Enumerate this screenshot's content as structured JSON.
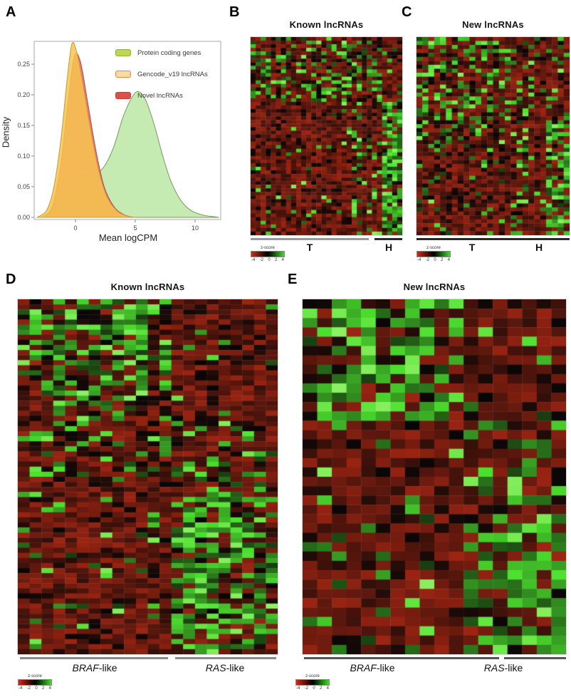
{
  "figure": {
    "background": "#ffffff"
  },
  "colorkey": {
    "label": "z-score",
    "ticks": [
      "-4",
      "-2",
      "0",
      "2",
      "4"
    ]
  },
  "panels": {
    "a": {
      "label": "A",
      "ylabel": "Density",
      "xlabel": "Mean logCPM",
      "legend": [
        {
          "label": "Protein coding genes",
          "swatch": "#bcd84e",
          "border": "#8fae33"
        },
        {
          "label": "Gencode_v19 lncRNAs",
          "swatch": "#f9dba6",
          "border": "#e8873f"
        },
        {
          "label": "Novel lncRNAs",
          "swatch": "#de5147",
          "border": "#c13c35"
        }
      ]
    },
    "b": {
      "label": "B",
      "title": "Known lncRNAs",
      "groups": [
        "T",
        "H"
      ]
    },
    "c": {
      "label": "C",
      "title": "New lncRNAs",
      "groups": [
        "T",
        "H"
      ]
    },
    "d": {
      "label": "D",
      "title": "Known lncRNAs",
      "groups": [
        {
          "italic": "BRAF",
          "rest": "-like"
        },
        {
          "italic": "RAS",
          "rest": "-like"
        }
      ]
    },
    "e": {
      "label": "E",
      "title": "New lncRNAs",
      "groups": [
        {
          "italic": "BRAF",
          "rest": "-like"
        },
        {
          "italic": "RAS",
          "rest": "-like"
        }
      ]
    }
  },
  "chart_data": [
    {
      "id": "density",
      "type": "area",
      "title": "",
      "xlabel": "Mean logCPM",
      "ylabel": "Density",
      "xlim": [
        -3.4,
        12.1
      ],
      "ylim": [
        0,
        0.285
      ],
      "xticks": [
        0,
        5,
        10
      ],
      "yticks": [
        0,
        0.05,
        0.1,
        0.15,
        0.2,
        0.25
      ],
      "grid": false,
      "legend_position": "top-right",
      "series": [
        {
          "name": "Protein coding genes",
          "color": "#b7e6a0",
          "stroke": "#769a62",
          "opacity": 0.8,
          "points": [
            [
              -2.9,
              0
            ],
            [
              -2.2,
              0.008
            ],
            [
              -1.5,
              0.028
            ],
            [
              -0.8,
              0.052
            ],
            [
              0,
              0.065
            ],
            [
              0.8,
              0.068
            ],
            [
              1.6,
              0.07
            ],
            [
              2.4,
              0.083
            ],
            [
              3.2,
              0.115
            ],
            [
              4,
              0.165
            ],
            [
              4.8,
              0.198
            ],
            [
              5.3,
              0.205
            ],
            [
              5.9,
              0.19
            ],
            [
              6.6,
              0.15
            ],
            [
              7.3,
              0.1
            ],
            [
              8,
              0.058
            ],
            [
              8.8,
              0.028
            ],
            [
              9.6,
              0.012
            ],
            [
              10.6,
              0.004
            ],
            [
              11.6,
              0.001
            ],
            [
              12,
              0
            ]
          ]
        },
        {
          "name": "Novel lncRNAs",
          "color": "#e4636b",
          "stroke": "#b8474f",
          "opacity": 0.85,
          "points": [
            [
              -2.6,
              0
            ],
            [
              -1.9,
              0.02
            ],
            [
              -1.2,
              0.09
            ],
            [
              -0.6,
              0.19
            ],
            [
              -0.1,
              0.262
            ],
            [
              0.4,
              0.255
            ],
            [
              1,
              0.19
            ],
            [
              1.7,
              0.11
            ],
            [
              2.4,
              0.05
            ],
            [
              3.2,
              0.018
            ],
            [
              4,
              0.005
            ],
            [
              4.8,
              0
            ]
          ]
        },
        {
          "name": "Gencode_v19 lncRNAs",
          "color": "#f6c44e",
          "stroke": "#c79a3e",
          "opacity": 0.85,
          "points": [
            [
              -3.2,
              0
            ],
            [
              -2.4,
              0.012
            ],
            [
              -1.8,
              0.05
            ],
            [
              -1.2,
              0.13
            ],
            [
              -0.7,
              0.225
            ],
            [
              -0.3,
              0.283
            ],
            [
              0.1,
              0.27
            ],
            [
              0.6,
              0.22
            ],
            [
              1.2,
              0.15
            ],
            [
              1.9,
              0.08
            ],
            [
              2.6,
              0.035
            ],
            [
              3.4,
              0.012
            ],
            [
              4.2,
              0.003
            ],
            [
              5,
              0
            ]
          ]
        }
      ]
    },
    {
      "id": "heatmap_b",
      "type": "heatmap",
      "title": "Known lncRNAs",
      "rows": 55,
      "cols": 30,
      "seed": 11,
      "col_groups": [
        {
          "label": "T",
          "from": 0,
          "to": 25
        },
        {
          "label": "H",
          "from": 26,
          "to": 29
        }
      ],
      "palette": {
        "neg": "#9c2412",
        "pos": "#4ce02e",
        "bright": "#9cf470",
        "black": "#060606"
      },
      "base": {
        "pGreen": 0.05,
        "pBlack": 0.12
      },
      "regions": [
        {
          "r0": 0,
          "r1": 18,
          "c0": 0,
          "c1": 26,
          "pGreen": 0.3,
          "pBlack": 0.15
        },
        {
          "r0": 0,
          "r1": 18,
          "c0": 26,
          "c1": 30,
          "pGreen": 0.12,
          "pBlack": 0.12
        },
        {
          "r0": 18,
          "r1": 55,
          "c0": 20,
          "c1": 22,
          "pGreen": 0.3,
          "pBlack": 0.1
        },
        {
          "r0": 28,
          "r1": 55,
          "c0": 23,
          "c1": 25,
          "pGreen": 0.25,
          "pBlack": 0.1
        },
        {
          "r0": 18,
          "r1": 55,
          "c0": 26,
          "c1": 30,
          "pGreen": 0.7,
          "pBlack": 0.08
        }
      ]
    },
    {
      "id": "heatmap_c",
      "type": "heatmap",
      "title": "New lncRNAs",
      "rows": 50,
      "cols": 26,
      "seed": 23,
      "col_groups": [
        {
          "label": "T",
          "from": 0,
          "to": 21
        },
        {
          "label": "H",
          "from": 22,
          "to": 25
        }
      ],
      "palette": {
        "neg": "#9c2412",
        "pos": "#4ce02e",
        "bright": "#9cf470",
        "black": "#060606"
      },
      "base": {
        "pGreen": 0.06,
        "pBlack": 0.12
      },
      "regions": [
        {
          "r0": 0,
          "r1": 28,
          "c0": 0,
          "c1": 14,
          "pGreen": 0.32,
          "pBlack": 0.15
        },
        {
          "r0": 0,
          "r1": 20,
          "c0": 14,
          "c1": 20,
          "pGreen": 0.22,
          "pBlack": 0.12
        },
        {
          "r0": 20,
          "r1": 50,
          "c0": 16,
          "c1": 19,
          "pGreen": 0.25,
          "pBlack": 0.1
        },
        {
          "r0": 0,
          "r1": 22,
          "c0": 22,
          "c1": 26,
          "pGreen": 0.1,
          "pBlack": 0.1
        },
        {
          "r0": 22,
          "r1": 50,
          "c0": 22,
          "c1": 26,
          "pGreen": 0.65,
          "pBlack": 0.08
        }
      ]
    },
    {
      "id": "heatmap_d",
      "type": "heatmap",
      "title": "Known lncRNAs",
      "rows": 70,
      "cols": 22,
      "seed": 5,
      "col_groups": [
        {
          "label": "BRAF-like",
          "from": 0,
          "to": 12
        },
        {
          "label": "RAS-like",
          "from": 13,
          "to": 21
        }
      ],
      "palette": {
        "neg": "#9c2412",
        "pos": "#4ce02e",
        "bright": "#9cf470",
        "black": "#060606"
      },
      "base": {
        "pGreen": 0.05,
        "pBlack": 0.1
      },
      "regions": [
        {
          "r0": 0,
          "r1": 22,
          "c0": 0,
          "c1": 13,
          "pGreen": 0.45,
          "pBlack": 0.18
        },
        {
          "r0": 0,
          "r1": 20,
          "c0": 10,
          "c1": 11,
          "pGreen": 0.88,
          "pBlack": 0.05
        },
        {
          "r0": 22,
          "r1": 36,
          "c0": 0,
          "c1": 13,
          "pGreen": 0.2,
          "pBlack": 0.15
        },
        {
          "r0": 36,
          "r1": 70,
          "c0": 0,
          "c1": 13,
          "pGreen": 0.08,
          "pBlack": 0.1
        },
        {
          "r0": 0,
          "r1": 24,
          "c0": 13,
          "c1": 22,
          "pGreen": 0.05,
          "pBlack": 0.1
        },
        {
          "r0": 24,
          "r1": 38,
          "c0": 13,
          "c1": 22,
          "pGreen": 0.25,
          "pBlack": 0.12
        },
        {
          "r0": 38,
          "r1": 70,
          "c0": 13,
          "c1": 22,
          "pGreen": 0.5,
          "pBlack": 0.1
        },
        {
          "r0": 42,
          "r1": 70,
          "c0": 14,
          "c1": 17,
          "pGreen": 0.72,
          "pBlack": 0.08
        }
      ]
    },
    {
      "id": "heatmap_e",
      "type": "heatmap",
      "title": "New lncRNAs",
      "rows": 38,
      "cols": 18,
      "seed": 97,
      "col_groups": [
        {
          "label": "BRAF-like",
          "from": 0,
          "to": 10
        },
        {
          "label": "RAS-like",
          "from": 11,
          "to": 17
        }
      ],
      "palette": {
        "neg": "#9c2412",
        "pos": "#4ce02e",
        "bright": "#9cf470",
        "black": "#060606"
      },
      "base": {
        "pGreen": 0.05,
        "pBlack": 0.1
      },
      "regions": [
        {
          "r0": 0,
          "r1": 13,
          "c0": 0,
          "c1": 11,
          "pGreen": 0.45,
          "pBlack": 0.18
        },
        {
          "r0": 0,
          "r1": 13,
          "c0": 11,
          "c1": 18,
          "pGreen": 0.08,
          "pBlack": 0.1
        },
        {
          "r0": 13,
          "r1": 38,
          "c0": 0,
          "c1": 11,
          "pGreen": 0.08,
          "pBlack": 0.1
        },
        {
          "r0": 13,
          "r1": 24,
          "c0": 11,
          "c1": 18,
          "pGreen": 0.3,
          "pBlack": 0.12
        },
        {
          "r0": 24,
          "r1": 38,
          "c0": 11,
          "c1": 18,
          "pGreen": 0.55,
          "pBlack": 0.1
        },
        {
          "r0": 28,
          "r1": 38,
          "c0": 13,
          "c1": 16,
          "pGreen": 0.7,
          "pBlack": 0.08
        }
      ]
    }
  ]
}
